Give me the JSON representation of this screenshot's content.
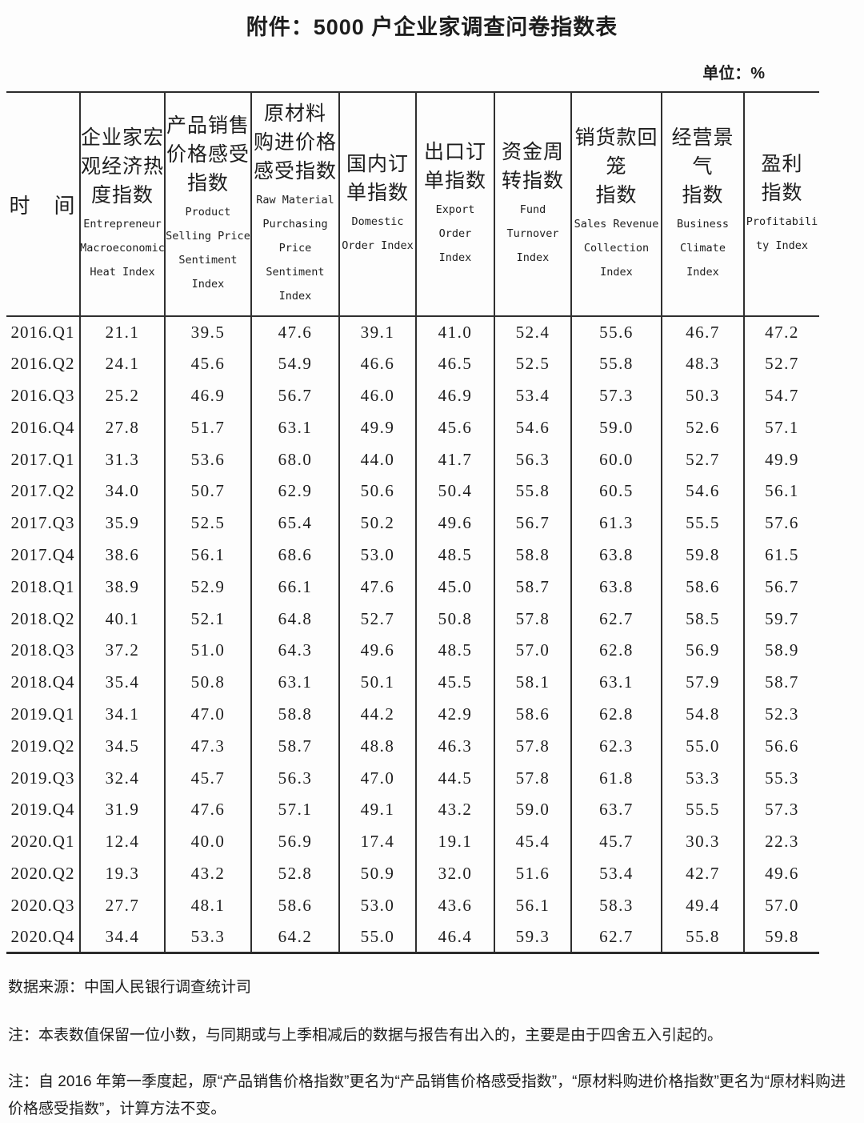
{
  "title": "附件：5000 户企业家调查问卷指数表",
  "unit_label": "单位：%",
  "table": {
    "time_header": "时　间",
    "columns": [
      {
        "zh": "企业家宏\n观经济热\n度指数",
        "en": "Entrepreneur\nMacroeconomic\nHeat Index"
      },
      {
        "zh": "产品销售\n价格感受\n指数",
        "en": "Product\nSelling Price\nSentiment\nIndex"
      },
      {
        "zh": "原材料\n购进价格\n感受指数",
        "en": "Raw Material\nPurchasing\nPrice\nSentiment\nIndex"
      },
      {
        "zh": "国内订\n单指数",
        "en": "Domestic\nOrder Index"
      },
      {
        "zh": "出口订\n单指数",
        "en": "Export Order\nIndex"
      },
      {
        "zh": "资金周\n转指数",
        "en": "Fund\nTurnover\nIndex"
      },
      {
        "zh": "销货款回\n笼\n指数",
        "en": "Sales Revenue\nCollection\nIndex"
      },
      {
        "zh": "经营景气\n指数",
        "en": "Business\nClimate Index"
      },
      {
        "zh": "盈利\n指数",
        "en": "Profitabili\nty Index"
      }
    ],
    "rows": [
      {
        "period": "2016.Q1",
        "values": [
          "21.1",
          "39.5",
          "47.6",
          "39.1",
          "41.0",
          "52.4",
          "55.6",
          "46.7",
          "47.2"
        ]
      },
      {
        "period": "2016.Q2",
        "values": [
          "24.1",
          "45.6",
          "54.9",
          "46.6",
          "46.5",
          "52.5",
          "55.8",
          "48.3",
          "52.7"
        ]
      },
      {
        "period": "2016.Q3",
        "values": [
          "25.2",
          "46.9",
          "56.7",
          "46.0",
          "46.9",
          "53.4",
          "57.3",
          "50.3",
          "54.7"
        ]
      },
      {
        "period": "2016.Q4",
        "values": [
          "27.8",
          "51.7",
          "63.1",
          "49.9",
          "45.6",
          "54.6",
          "59.0",
          "52.6",
          "57.1"
        ]
      },
      {
        "period": "2017.Q1",
        "values": [
          "31.3",
          "53.6",
          "68.0",
          "44.0",
          "41.7",
          "56.3",
          "60.0",
          "52.7",
          "49.9"
        ]
      },
      {
        "period": "2017.Q2",
        "values": [
          "34.0",
          "50.7",
          "62.9",
          "50.6",
          "50.4",
          "55.8",
          "60.5",
          "54.6",
          "56.1"
        ]
      },
      {
        "period": "2017.Q3",
        "values": [
          "35.9",
          "52.5",
          "65.4",
          "50.2",
          "49.6",
          "56.7",
          "61.3",
          "55.5",
          "57.6"
        ]
      },
      {
        "period": "2017.Q4",
        "values": [
          "38.6",
          "56.1",
          "68.6",
          "53.0",
          "48.5",
          "58.8",
          "63.8",
          "59.8",
          "61.5"
        ]
      },
      {
        "period": "2018.Q1",
        "values": [
          "38.9",
          "52.9",
          "66.1",
          "47.6",
          "45.0",
          "58.7",
          "63.8",
          "58.6",
          "56.7"
        ]
      },
      {
        "period": "2018.Q2",
        "values": [
          "40.1",
          "52.1",
          "64.8",
          "52.7",
          "50.8",
          "57.8",
          "62.7",
          "58.5",
          "59.7"
        ]
      },
      {
        "period": "2018.Q3",
        "values": [
          "37.2",
          "51.0",
          "64.3",
          "49.6",
          "48.5",
          "57.0",
          "62.8",
          "56.9",
          "58.9"
        ]
      },
      {
        "period": "2018.Q4",
        "values": [
          "35.4",
          "50.8",
          "63.1",
          "50.1",
          "45.5",
          "58.1",
          "63.1",
          "57.9",
          "58.7"
        ]
      },
      {
        "period": "2019.Q1",
        "values": [
          "34.1",
          "47.0",
          "58.8",
          "44.2",
          "42.9",
          "58.6",
          "62.8",
          "54.8",
          "52.3"
        ]
      },
      {
        "period": "2019.Q2",
        "values": [
          "34.5",
          "47.3",
          "58.7",
          "48.8",
          "46.3",
          "57.8",
          "62.3",
          "55.0",
          "56.6"
        ]
      },
      {
        "period": "2019.Q3",
        "values": [
          "32.4",
          "45.7",
          "56.3",
          "47.0",
          "44.5",
          "57.8",
          "61.8",
          "53.3",
          "55.3"
        ]
      },
      {
        "period": "2019.Q4",
        "values": [
          "31.9",
          "47.6",
          "57.1",
          "49.1",
          "43.2",
          "59.0",
          "63.7",
          "55.5",
          "57.3"
        ]
      },
      {
        "period": "2020.Q1",
        "values": [
          "12.4",
          "40.0",
          "56.9",
          "17.4",
          "19.1",
          "45.4",
          "45.7",
          "30.3",
          "22.3"
        ]
      },
      {
        "period": "2020.Q2",
        "values": [
          "19.3",
          "43.2",
          "52.8",
          "50.9",
          "32.0",
          "51.6",
          "53.4",
          "42.7",
          "49.6"
        ]
      },
      {
        "period": "2020.Q3",
        "values": [
          "27.7",
          "48.1",
          "58.6",
          "53.0",
          "43.6",
          "56.1",
          "58.3",
          "49.4",
          "57.0"
        ]
      },
      {
        "period": "2020.Q4",
        "values": [
          "34.4",
          "53.3",
          "64.2",
          "55.0",
          "46.4",
          "59.3",
          "62.7",
          "55.8",
          "59.8"
        ]
      }
    ]
  },
  "footer": {
    "source": "数据来源：中国人民银行调查统计司",
    "note1": "注：本表数值保留一位小数，与同期或与上季相减后的数据与报告有出入的，主要是由于四舍五入引起的。",
    "note2": "注：自 2016 年第一季度起，原“产品销售价格指数”更名为“产品销售价格感受指数”，“原材料购进价格指数”更名为“原材料购进价格感受指数”，计算方法不变。"
  }
}
